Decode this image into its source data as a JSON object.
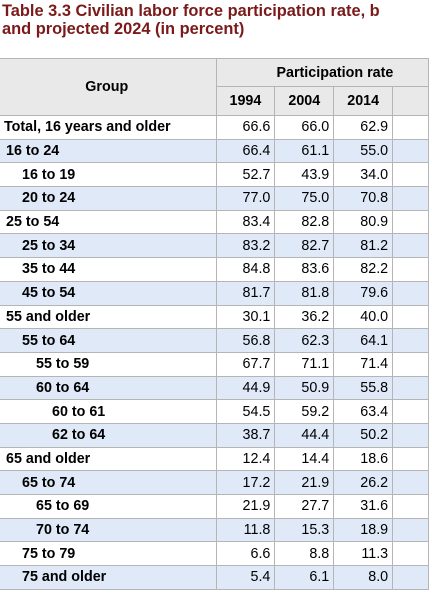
{
  "title_line1": "Table 3.3 Civilian labor force participation rate, b",
  "title_line2": "and projected 2024 (in percent)",
  "header": {
    "group": "Group",
    "participation_rate": "Participation rate",
    "years": [
      "1994",
      "2004",
      "2014"
    ]
  },
  "rows": [
    {
      "group": "Total, 16 years and older",
      "level": 0,
      "values": [
        "66.6",
        "66.0",
        "62.9"
      ]
    },
    {
      "group": "16 to 24",
      "level": 1,
      "values": [
        "66.4",
        "61.1",
        "55.0"
      ]
    },
    {
      "group": "16 to 19",
      "level": 2,
      "values": [
        "52.7",
        "43.9",
        "34.0"
      ]
    },
    {
      "group": "20 to 24",
      "level": 2,
      "values": [
        "77.0",
        "75.0",
        "70.8"
      ]
    },
    {
      "group": "25 to 54",
      "level": 1,
      "values": [
        "83.4",
        "82.8",
        "80.9"
      ]
    },
    {
      "group": "25 to 34",
      "level": 2,
      "values": [
        "83.2",
        "82.7",
        "81.2"
      ]
    },
    {
      "group": "35 to 44",
      "level": 2,
      "values": [
        "84.8",
        "83.6",
        "82.2"
      ]
    },
    {
      "group": "45 to 54",
      "level": 2,
      "values": [
        "81.7",
        "81.8",
        "79.6"
      ]
    },
    {
      "group": "55 and older",
      "level": 1,
      "values": [
        "30.1",
        "36.2",
        "40.0"
      ]
    },
    {
      "group": "55 to 64",
      "level": 2,
      "values": [
        "56.8",
        "62.3",
        "64.1"
      ]
    },
    {
      "group": "55 to 59",
      "level": 3,
      "values": [
        "67.7",
        "71.1",
        "71.4"
      ]
    },
    {
      "group": "60 to 64",
      "level": 3,
      "values": [
        "44.9",
        "50.9",
        "55.8"
      ]
    },
    {
      "group": "60 to 61",
      "level": 4,
      "values": [
        "54.5",
        "59.2",
        "63.4"
      ]
    },
    {
      "group": "62 to 64",
      "level": 4,
      "values": [
        "38.7",
        "44.4",
        "50.2"
      ]
    },
    {
      "group": "65 and older",
      "level": 1,
      "values": [
        "12.4",
        "14.4",
        "18.6"
      ]
    },
    {
      "group": "65 to 74",
      "level": 2,
      "values": [
        "17.2",
        "21.9",
        "26.2"
      ]
    },
    {
      "group": "65 to 69",
      "level": 3,
      "values": [
        "21.9",
        "27.7",
        "31.6"
      ]
    },
    {
      "group": "70 to 74",
      "level": 3,
      "values": [
        "11.8",
        "15.3",
        "18.9"
      ]
    },
    {
      "group": "75 to 79",
      "level": 2,
      "values": [
        "6.6",
        "8.8",
        "11.3"
      ]
    },
    {
      "group": "75 and older",
      "level": 2,
      "values": [
        "5.4",
        "6.1",
        "8.0"
      ]
    }
  ],
  "colors": {
    "title": "#7a1a1a",
    "header_bg": "#e9e9e9",
    "row_stripe": "#dfe9f8",
    "row_plain": "#ffffff",
    "border": "#b5b5b5"
  }
}
